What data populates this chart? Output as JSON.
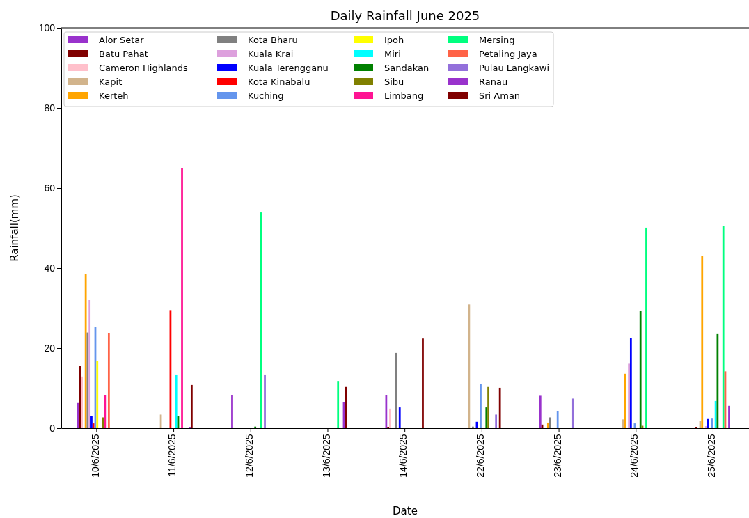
{
  "chart_data": {
    "type": "bar",
    "title": "Daily Rainfall June 2025",
    "xlabel": "Date",
    "ylabel": "Rainfall(mm)",
    "categories": [
      "10/6/2025",
      "11/6/2025",
      "12/6/2025",
      "13/6/2025",
      "14/6/2025",
      "22/6/2025",
      "23/6/2025",
      "24/6/2025",
      "25/6/2025"
    ],
    "ylim": [
      0,
      100
    ],
    "yticks": [
      0,
      20,
      40,
      60,
      80,
      100
    ],
    "legend": "top left",
    "series": [
      {
        "name": "Alor Setar",
        "color": "#9932cc",
        "values": [
          6.3,
          null,
          8.3,
          null,
          8.3,
          null,
          8.1,
          null,
          null
        ]
      },
      {
        "name": "Batu Pahat",
        "color": "#800000",
        "values": [
          15.5,
          null,
          null,
          null,
          0.2,
          null,
          0.9,
          null,
          0.3
        ]
      },
      {
        "name": "Cameron Highlands",
        "color": "#ffc0cb",
        "values": [
          12.9,
          null,
          null,
          null,
          4.9,
          null,
          null,
          null,
          null
        ]
      },
      {
        "name": "Kapit",
        "color": "#d2b48c",
        "values": [
          null,
          3.4,
          null,
          null,
          null,
          30.9,
          null,
          2.2,
          1.9
        ]
      },
      {
        "name": "Kerteh",
        "color": "#ffa500",
        "values": [
          38.5,
          null,
          null,
          null,
          null,
          null,
          1.4,
          13.6,
          43
        ]
      },
      {
        "name": "Kota Bharu",
        "color": "#808080",
        "values": [
          23.9,
          null,
          null,
          null,
          18.8,
          0.4,
          2.7,
          null,
          null
        ]
      },
      {
        "name": "Kuala Krai",
        "color": "#dda0dd",
        "values": [
          32,
          null,
          null,
          null,
          null,
          null,
          null,
          16.1,
          0.5
        ]
      },
      {
        "name": "Kuala Terengganu",
        "color": "#0000ff",
        "values": [
          3.1,
          null,
          null,
          null,
          5.2,
          1.6,
          null,
          22.6,
          2.3
        ]
      },
      {
        "name": "Kota Kinabalu",
        "color": "#ff0000",
        "values": [
          1.2,
          29.5,
          null,
          null,
          null,
          null,
          null,
          null,
          null
        ]
      },
      {
        "name": "Kuching",
        "color": "#6495ed",
        "values": [
          25.3,
          null,
          null,
          null,
          null,
          11,
          4.3,
          1.2,
          2.4
        ]
      },
      {
        "name": "Ipoh",
        "color": "#ffff00",
        "values": [
          16.8,
          null,
          null,
          null,
          null,
          null,
          null,
          null,
          null
        ]
      },
      {
        "name": "Miri",
        "color": "#00ffff",
        "values": [
          null,
          13.4,
          null,
          null,
          null,
          null,
          null,
          null,
          6.8
        ]
      },
      {
        "name": "Sandakan",
        "color": "#008000",
        "values": [
          null,
          3.1,
          0.4,
          null,
          null,
          5.2,
          null,
          29.3,
          23.5
        ]
      },
      {
        "name": "Sibu",
        "color": "#808000",
        "values": [
          2.7,
          null,
          null,
          null,
          null,
          10.3,
          null,
          0.6,
          null
        ]
      },
      {
        "name": "Limbang",
        "color": "#ff1493",
        "values": [
          8.3,
          64.9,
          null,
          null,
          null,
          null,
          null,
          null,
          null
        ]
      },
      {
        "name": "Mersing",
        "color": "#00ff7f",
        "values": [
          null,
          null,
          53.9,
          11.8,
          null,
          null,
          null,
          50.1,
          50.6
        ]
      },
      {
        "name": "Petaling Jaya",
        "color": "#ff6347",
        "values": [
          23.8,
          null,
          null,
          null,
          null,
          null,
          null,
          null,
          14.2
        ]
      },
      {
        "name": "Pulau Langkawi",
        "color": "#9370db",
        "values": [
          null,
          null,
          13.4,
          null,
          null,
          3.4,
          7.4,
          null,
          null
        ]
      },
      {
        "name": "Ranau",
        "color": "#9932cc",
        "values": [
          null,
          0.3,
          null,
          6.5,
          null,
          null,
          null,
          null,
          5.6
        ]
      },
      {
        "name": "Sri Aman",
        "color": "#800000",
        "values": [
          null,
          10.8,
          null,
          10.3,
          22.4,
          10.1,
          null,
          null,
          null
        ]
      }
    ]
  }
}
